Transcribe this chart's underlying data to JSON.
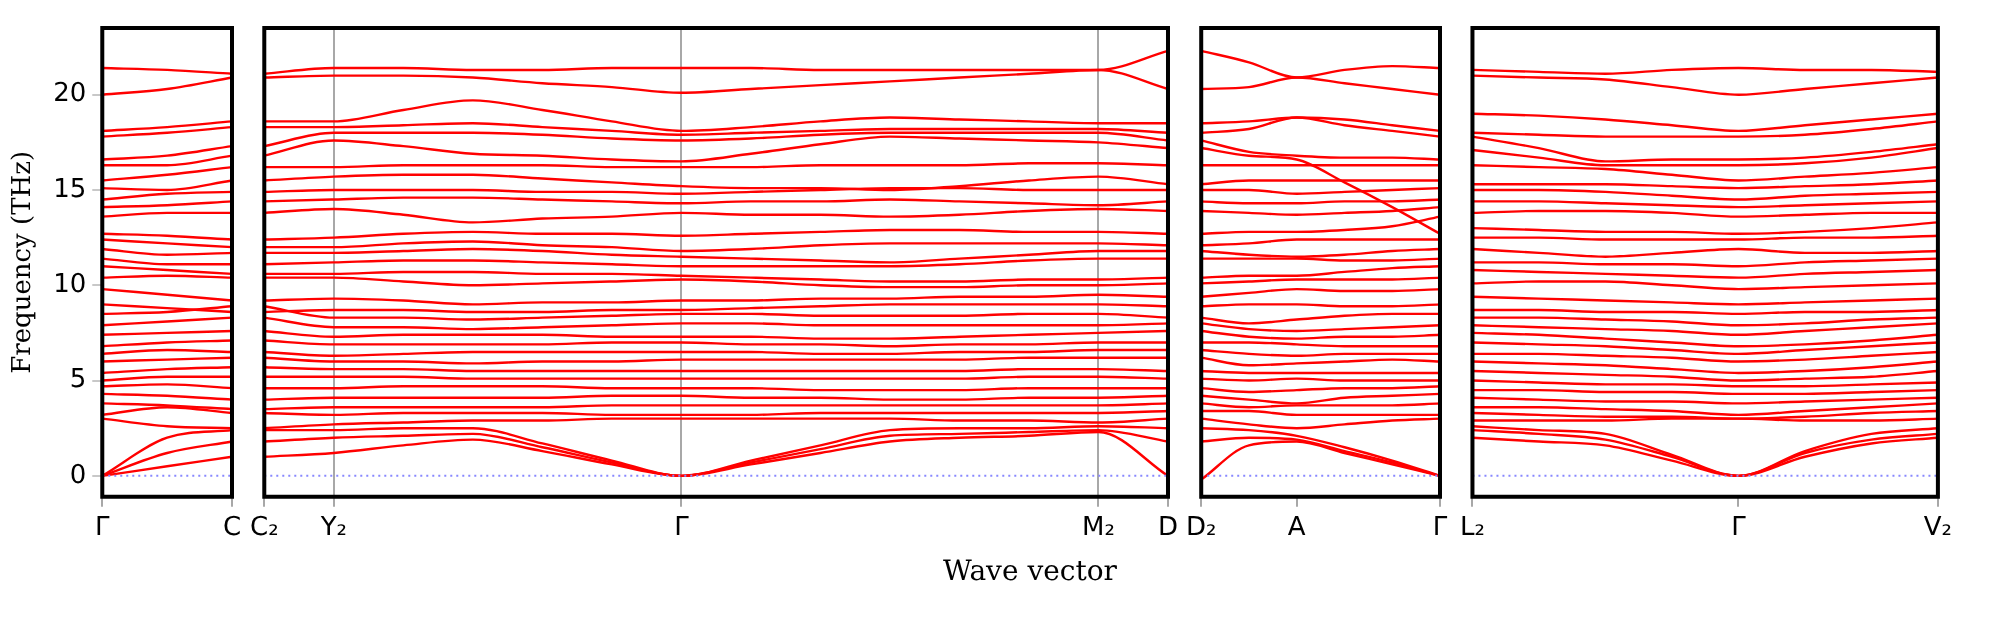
{
  "chart_data": [
    {
      "type": "line",
      "ylabel": "Frequency (THz)",
      "categories": [
        "Γ",
        null,
        "C"
      ],
      "ylim": [
        -1.1,
        23.5
      ],
      "yticks": [
        0,
        5,
        10,
        15,
        20
      ],
      "legend": false,
      "marker": "none",
      "line_style": "solid",
      "ref_lines": [
        {
          "axis": "y",
          "value": 0,
          "color": "#8888ff",
          "line_style": "dotted"
        }
      ],
      "series": [
        {
          "color": "#ff0000",
          "values": [
            21.4,
            21.3,
            21.1
          ]
        },
        {
          "color": "#ff0000",
          "values": [
            20.0,
            20.3,
            20.9
          ]
        },
        {
          "color": "#ff0000",
          "values": [
            18.1,
            18.3,
            18.6
          ]
        },
        {
          "color": "#ff0000",
          "values": [
            17.8,
            18.0,
            18.3
          ]
        },
        {
          "color": "#ff0000",
          "values": [
            16.6,
            16.8,
            17.3
          ]
        },
        {
          "color": "#ff0000",
          "values": [
            16.3,
            16.3,
            16.8
          ]
        },
        {
          "color": "#ff0000",
          "values": [
            15.5,
            15.8,
            16.2
          ]
        },
        {
          "color": "#ff0000",
          "values": [
            15.1,
            15.0,
            15.5
          ]
        },
        {
          "color": "#ff0000",
          "values": [
            14.5,
            14.8,
            14.9
          ]
        },
        {
          "color": "#ff0000",
          "values": [
            14.1,
            14.2,
            14.4
          ]
        },
        {
          "color": "#ff0000",
          "values": [
            13.6,
            13.8,
            13.8
          ]
        },
        {
          "color": "#ff0000",
          "values": [
            12.7,
            12.6,
            12.4
          ]
        },
        {
          "color": "#ff0000",
          "values": [
            12.4,
            12.2,
            12.0
          ]
        },
        {
          "color": "#ff0000",
          "values": [
            11.9,
            11.6,
            11.7
          ]
        },
        {
          "color": "#ff0000",
          "values": [
            11.4,
            11.1,
            11.1
          ]
        },
        {
          "color": "#ff0000",
          "values": [
            11.0,
            10.8,
            10.6
          ]
        },
        {
          "color": "#ff0000",
          "values": [
            10.4,
            10.5,
            10.4
          ]
        },
        {
          "color": "#ff0000",
          "values": [
            9.8,
            9.5,
            9.2
          ]
        },
        {
          "color": "#ff0000",
          "values": [
            9.0,
            8.8,
            8.6
          ]
        },
        {
          "color": "#ff0000",
          "values": [
            8.5,
            8.6,
            8.9
          ]
        },
        {
          "color": "#ff0000",
          "values": [
            7.9,
            8.1,
            8.3
          ]
        },
        {
          "color": "#ff0000",
          "values": [
            7.4,
            7.5,
            7.6
          ]
        },
        {
          "color": "#ff0000",
          "values": [
            6.8,
            7.0,
            7.1
          ]
        },
        {
          "color": "#ff0000",
          "values": [
            6.4,
            6.6,
            6.5
          ]
        },
        {
          "color": "#ff0000",
          "values": [
            6.0,
            6.1,
            6.2
          ]
        },
        {
          "color": "#ff0000",
          "values": [
            5.4,
            5.6,
            5.7
          ]
        },
        {
          "color": "#ff0000",
          "values": [
            5.0,
            5.2,
            5.2
          ]
        },
        {
          "color": "#ff0000",
          "values": [
            4.7,
            4.8,
            4.6
          ]
        },
        {
          "color": "#ff0000",
          "values": [
            4.3,
            4.2,
            4.0
          ]
        },
        {
          "color": "#ff0000",
          "values": [
            3.8,
            3.7,
            3.5
          ]
        },
        {
          "color": "#ff0000",
          "values": [
            3.2,
            3.6,
            3.3
          ]
        },
        {
          "color": "#ff0000",
          "values": [
            3.0,
            2.6,
            2.5
          ]
        },
        {
          "color": "#ff0000",
          "values": [
            0,
            2.0,
            2.4
          ]
        },
        {
          "color": "#ff0000",
          "values": [
            0,
            1.2,
            1.8
          ]
        },
        {
          "color": "#ff0000",
          "values": [
            0,
            0.5,
            1.0
          ]
        }
      ]
    },
    {
      "type": "line",
      "xlabel": "Wave vector",
      "categories": [
        "C₂",
        "Y₂",
        null,
        null,
        null,
        null,
        "Γ",
        null,
        null,
        null,
        null,
        null,
        "M₂",
        "D"
      ],
      "ylim": [
        -1.1,
        23.5
      ],
      "tick_labels": "x",
      "grid": "x",
      "legend": false,
      "marker": "none",
      "line_style": "solid",
      "ref_lines": [
        {
          "axis": "y",
          "value": 0,
          "color": "#8888ff",
          "line_style": "dotted"
        }
      ],
      "series": [
        {
          "color": "#ff0000",
          "values": [
            21.1,
            21.4,
            21.4,
            21.3,
            21.3,
            21.4,
            21.4,
            21.4,
            21.3,
            21.3,
            21.3,
            21.3,
            21.3,
            22.3
          ]
        },
        {
          "color": "#ff0000",
          "values": [
            20.9,
            21.0,
            21.0,
            20.9,
            20.6,
            20.4,
            20.1,
            20.3,
            20.5,
            20.7,
            20.9,
            21.1,
            21.3,
            20.3
          ]
        },
        {
          "color": "#ff0000",
          "values": [
            18.6,
            18.6,
            19.2,
            19.7,
            19.2,
            18.6,
            18.1,
            18.3,
            18.6,
            18.8,
            18.7,
            18.6,
            18.5,
            18.5
          ]
        },
        {
          "color": "#ff0000",
          "values": [
            18.3,
            18.3,
            18.4,
            18.5,
            18.3,
            18.1,
            17.9,
            18.0,
            18.1,
            18.2,
            18.2,
            18.2,
            18.2,
            18.0
          ]
        },
        {
          "color": "#ff0000",
          "values": [
            17.3,
            18.0,
            18.0,
            18.0,
            17.9,
            17.7,
            17.6,
            17.7,
            17.9,
            18.0,
            18.0,
            18.0,
            18.0,
            17.6
          ]
        },
        {
          "color": "#ff0000",
          "values": [
            16.8,
            17.6,
            17.3,
            16.9,
            16.8,
            16.6,
            16.5,
            16.9,
            17.4,
            17.8,
            17.7,
            17.6,
            17.5,
            17.2
          ]
        },
        {
          "color": "#ff0000",
          "values": [
            16.2,
            16.2,
            16.3,
            16.3,
            16.3,
            16.2,
            16.2,
            16.2,
            16.3,
            16.3,
            16.3,
            16.4,
            16.4,
            16.3
          ]
        },
        {
          "color": "#ff0000",
          "values": [
            15.5,
            15.7,
            15.8,
            15.8,
            15.6,
            15.4,
            15.2,
            15.1,
            15.1,
            15.0,
            15.2,
            15.5,
            15.7,
            15.3
          ]
        },
        {
          "color": "#ff0000",
          "values": [
            14.9,
            15.0,
            15.0,
            15.0,
            14.9,
            14.9,
            14.8,
            14.9,
            15.0,
            15.1,
            15.1,
            15.0,
            15.0,
            15.0
          ]
        },
        {
          "color": "#ff0000",
          "values": [
            14.4,
            14.5,
            14.6,
            14.6,
            14.5,
            14.4,
            14.3,
            14.4,
            14.4,
            14.5,
            14.4,
            14.3,
            14.2,
            14.4
          ]
        },
        {
          "color": "#ff0000",
          "values": [
            13.8,
            14.0,
            13.7,
            13.3,
            13.5,
            13.6,
            13.8,
            13.7,
            13.7,
            13.6,
            13.7,
            13.9,
            14.0,
            13.9
          ]
        },
        {
          "color": "#ff0000",
          "values": [
            12.4,
            12.5,
            12.7,
            12.8,
            12.7,
            12.7,
            12.6,
            12.7,
            12.8,
            12.9,
            12.9,
            12.8,
            12.8,
            12.7
          ]
        },
        {
          "color": "#ff0000",
          "values": [
            12.0,
            12.0,
            12.2,
            12.3,
            12.1,
            12.0,
            11.8,
            11.9,
            12.1,
            12.2,
            12.2,
            12.2,
            12.2,
            12.1
          ]
        },
        {
          "color": "#ff0000",
          "values": [
            11.7,
            11.7,
            11.8,
            11.9,
            11.8,
            11.6,
            11.5,
            11.4,
            11.3,
            11.2,
            11.4,
            11.6,
            11.8,
            11.8
          ]
        },
        {
          "color": "#ff0000",
          "values": [
            11.1,
            11.2,
            11.3,
            11.3,
            11.2,
            11.1,
            11.0,
            11.0,
            11.0,
            11.0,
            11.1,
            11.3,
            11.4,
            11.4
          ]
        },
        {
          "color": "#ff0000",
          "values": [
            10.6,
            10.6,
            10.7,
            10.7,
            10.6,
            10.6,
            10.5,
            10.4,
            10.3,
            10.2,
            10.2,
            10.3,
            10.3,
            10.4
          ]
        },
        {
          "color": "#ff0000",
          "values": [
            10.4,
            10.4,
            10.2,
            10.0,
            10.1,
            10.2,
            10.3,
            10.2,
            10.0,
            9.9,
            9.9,
            10.0,
            10.0,
            10.1
          ]
        },
        {
          "color": "#ff0000",
          "values": [
            9.2,
            9.3,
            9.2,
            9.0,
            9.1,
            9.1,
            9.2,
            9.2,
            9.3,
            9.3,
            9.4,
            9.4,
            9.5,
            9.4
          ]
        },
        {
          "color": "#ff0000",
          "values": [
            8.6,
            8.7,
            8.7,
            8.6,
            8.6,
            8.7,
            8.7,
            8.8,
            8.9,
            9.0,
            9.0,
            9.0,
            9.0,
            8.9
          ]
        },
        {
          "color": "#ff0000",
          "values": [
            8.9,
            8.3,
            8.3,
            8.2,
            8.3,
            8.4,
            8.5,
            8.5,
            8.4,
            8.4,
            8.4,
            8.5,
            8.5,
            8.3
          ]
        },
        {
          "color": "#ff0000",
          "values": [
            8.3,
            7.8,
            7.8,
            7.7,
            7.8,
            7.9,
            8.0,
            8.0,
            7.9,
            7.9,
            7.9,
            7.9,
            7.9,
            8.0
          ]
        },
        {
          "color": "#ff0000",
          "values": [
            7.6,
            7.3,
            7.4,
            7.4,
            7.4,
            7.3,
            7.3,
            7.3,
            7.2,
            7.2,
            7.3,
            7.4,
            7.5,
            7.6
          ]
        },
        {
          "color": "#ff0000",
          "values": [
            7.1,
            6.9,
            6.9,
            6.9,
            6.9,
            7.0,
            7.0,
            6.9,
            6.9,
            6.8,
            6.9,
            6.9,
            7.0,
            7.0
          ]
        },
        {
          "color": "#ff0000",
          "values": [
            6.5,
            6.3,
            6.4,
            6.5,
            6.5,
            6.5,
            6.5,
            6.5,
            6.4,
            6.4,
            6.5,
            6.5,
            6.6,
            6.6
          ]
        },
        {
          "color": "#ff0000",
          "values": [
            6.2,
            6.0,
            6.0,
            5.9,
            6.0,
            6.0,
            6.1,
            6.1,
            6.1,
            6.1,
            6.1,
            6.2,
            6.2,
            6.2
          ]
        },
        {
          "color": "#ff0000",
          "values": [
            5.7,
            5.6,
            5.6,
            5.5,
            5.5,
            5.5,
            5.5,
            5.5,
            5.5,
            5.5,
            5.5,
            5.6,
            5.6,
            5.5
          ]
        },
        {
          "color": "#ff0000",
          "values": [
            5.2,
            5.2,
            5.2,
            5.1,
            5.1,
            5.1,
            5.1,
            5.1,
            5.1,
            5.1,
            5.1,
            5.2,
            5.2,
            5.1
          ]
        },
        {
          "color": "#ff0000",
          "values": [
            4.6,
            4.6,
            4.7,
            4.7,
            4.7,
            4.6,
            4.6,
            4.6,
            4.5,
            4.5,
            4.5,
            4.6,
            4.6,
            4.6
          ]
        },
        {
          "color": "#ff0000",
          "values": [
            4.0,
            4.1,
            4.1,
            4.1,
            4.1,
            4.2,
            4.2,
            4.1,
            4.1,
            4.0,
            4.0,
            4.1,
            4.1,
            4.2
          ]
        },
        {
          "color": "#ff0000",
          "values": [
            3.5,
            3.6,
            3.6,
            3.6,
            3.6,
            3.7,
            3.7,
            3.7,
            3.7,
            3.7,
            3.7,
            3.7,
            3.7,
            3.8
          ]
        },
        {
          "color": "#ff0000",
          "values": [
            3.3,
            3.2,
            3.3,
            3.3,
            3.3,
            3.2,
            3.2,
            3.2,
            3.3,
            3.3,
            3.3,
            3.3,
            3.3,
            3.4
          ]
        },
        {
          "color": "#ff0000",
          "values": [
            2.5,
            2.7,
            2.8,
            2.9,
            2.9,
            3.0,
            3.0,
            3.0,
            3.0,
            3.0,
            2.9,
            2.9,
            2.8,
            3.0
          ]
        },
        {
          "color": "#ff0000",
          "values": [
            2.4,
            2.4,
            2.5,
            2.5,
            1.7,
            0.8,
            0,
            0.8,
            1.6,
            2.4,
            2.5,
            2.5,
            2.6,
            2.5
          ]
        },
        {
          "color": "#ff0000",
          "values": [
            1.8,
            2.0,
            2.1,
            2.2,
            1.5,
            0.7,
            0,
            0.7,
            1.4,
            2.1,
            2.2,
            2.3,
            2.4,
            1.8
          ]
        },
        {
          "color": "#ff0000",
          "values": [
            1.0,
            1.2,
            1.6,
            1.9,
            1.3,
            0.6,
            0,
            0.6,
            1.2,
            1.8,
            2.0,
            2.1,
            2.3,
            0
          ]
        }
      ]
    },
    {
      "type": "line",
      "categories": [
        "D₂",
        null,
        "A",
        null,
        null,
        "Γ"
      ],
      "ylim": [
        -1.1,
        23.5
      ],
      "tick_labels": "x",
      "legend": false,
      "marker": "none",
      "line_style": "solid",
      "ref_lines": [
        {
          "axis": "y",
          "value": 0,
          "color": "#8888ff",
          "line_style": "dotted"
        }
      ],
      "series": [
        {
          "color": "#ff0000",
          "values": [
            22.3,
            21.7,
            20.9,
            21.3,
            21.5,
            21.4
          ]
        },
        {
          "color": "#ff0000",
          "values": [
            20.3,
            20.4,
            20.9,
            20.6,
            20.3,
            20.0
          ]
        },
        {
          "color": "#ff0000",
          "values": [
            18.5,
            18.6,
            18.8,
            18.7,
            18.4,
            18.1
          ]
        },
        {
          "color": "#ff0000",
          "values": [
            18.0,
            18.2,
            18.8,
            18.4,
            18.1,
            17.8
          ]
        },
        {
          "color": "#ff0000",
          "values": [
            17.6,
            17.0,
            16.8,
            16.7,
            16.7,
            16.6
          ]
        },
        {
          "color": "#ff0000",
          "values": [
            17.2,
            16.8,
            16.6,
            15.4,
            14.1,
            12.7
          ]
        },
        {
          "color": "#ff0000",
          "values": [
            16.3,
            16.3,
            16.3,
            16.3,
            16.3,
            16.3
          ]
        },
        {
          "color": "#ff0000",
          "values": [
            15.3,
            15.5,
            15.5,
            15.5,
            15.5,
            15.5
          ]
        },
        {
          "color": "#ff0000",
          "values": [
            15.0,
            15.0,
            14.8,
            14.9,
            15.0,
            15.1
          ]
        },
        {
          "color": "#ff0000",
          "values": [
            14.4,
            14.3,
            14.3,
            14.4,
            14.4,
            14.5
          ]
        },
        {
          "color": "#ff0000",
          "values": [
            13.9,
            13.8,
            13.7,
            13.8,
            13.9,
            14.1
          ]
        },
        {
          "color": "#ff0000",
          "values": [
            12.7,
            12.8,
            12.8,
            12.9,
            13.1,
            13.6
          ]
        },
        {
          "color": "#ff0000",
          "values": [
            12.1,
            12.2,
            12.4,
            12.4,
            12.4,
            12.4
          ]
        },
        {
          "color": "#ff0000",
          "values": [
            11.8,
            11.6,
            11.5,
            11.6,
            11.8,
            11.9
          ]
        },
        {
          "color": "#ff0000",
          "values": [
            11.4,
            11.4,
            11.4,
            11.3,
            11.3,
            11.4
          ]
        },
        {
          "color": "#ff0000",
          "values": [
            10.4,
            10.5,
            10.5,
            10.7,
            10.9,
            11.0
          ]
        },
        {
          "color": "#ff0000",
          "values": [
            10.1,
            10.2,
            10.3,
            10.3,
            10.3,
            10.4
          ]
        },
        {
          "color": "#ff0000",
          "values": [
            9.4,
            9.6,
            9.8,
            9.7,
            9.7,
            9.8
          ]
        },
        {
          "color": "#ff0000",
          "values": [
            8.9,
            9.0,
            9.0,
            8.9,
            8.9,
            9.0
          ]
        },
        {
          "color": "#ff0000",
          "values": [
            8.3,
            8.0,
            8.2,
            8.4,
            8.5,
            8.5
          ]
        },
        {
          "color": "#ff0000",
          "values": [
            8.0,
            7.7,
            7.6,
            7.7,
            7.8,
            7.9
          ]
        },
        {
          "color": "#ff0000",
          "values": [
            7.6,
            7.3,
            7.2,
            7.3,
            7.3,
            7.4
          ]
        },
        {
          "color": "#ff0000",
          "values": [
            7.0,
            7.0,
            6.9,
            6.8,
            6.8,
            6.8
          ]
        },
        {
          "color": "#ff0000",
          "values": [
            6.6,
            6.4,
            6.3,
            6.4,
            6.4,
            6.4
          ]
        },
        {
          "color": "#ff0000",
          "values": [
            6.2,
            5.8,
            5.9,
            6.0,
            6.1,
            6.0
          ]
        },
        {
          "color": "#ff0000",
          "values": [
            5.5,
            5.4,
            5.4,
            5.4,
            5.4,
            5.4
          ]
        },
        {
          "color": "#ff0000",
          "values": [
            5.1,
            5.0,
            5.1,
            5.0,
            5.0,
            5.0
          ]
        },
        {
          "color": "#ff0000",
          "values": [
            4.6,
            4.4,
            4.5,
            4.6,
            4.6,
            4.7
          ]
        },
        {
          "color": "#ff0000",
          "values": [
            4.2,
            4.0,
            3.8,
            4.1,
            4.2,
            4.3
          ]
        },
        {
          "color": "#ff0000",
          "values": [
            3.8,
            3.6,
            3.7,
            3.7,
            3.7,
            3.8
          ]
        },
        {
          "color": "#ff0000",
          "values": [
            3.4,
            3.4,
            3.2,
            3.2,
            3.2,
            3.2
          ]
        },
        {
          "color": "#ff0000",
          "values": [
            3.0,
            2.7,
            2.5,
            2.7,
            2.9,
            3.0
          ]
        },
        {
          "color": "#ff0000",
          "values": [
            2.5,
            2.4,
            2.1,
            1.5,
            0.8,
            0
          ]
        },
        {
          "color": "#ff0000",
          "values": [
            1.8,
            2.0,
            1.9,
            1.3,
            0.7,
            0
          ]
        },
        {
          "color": "#ff0000",
          "values": [
            -0.2,
            1.6,
            1.8,
            1.2,
            0.6,
            0
          ]
        }
      ]
    },
    {
      "type": "line",
      "categories": [
        "L₂",
        null,
        null,
        null,
        "Γ",
        null,
        null,
        "V₂"
      ],
      "ylim": [
        -1.1,
        23.5
      ],
      "tick_labels": "x",
      "legend": false,
      "marker": "none",
      "line_style": "solid",
      "ref_lines": [
        {
          "axis": "y",
          "value": 0,
          "color": "#8888ff",
          "line_style": "dotted"
        }
      ],
      "series": [
        {
          "color": "#ff0000",
          "values": [
            21.3,
            21.2,
            21.1,
            21.3,
            21.4,
            21.3,
            21.3,
            21.2
          ]
        },
        {
          "color": "#ff0000",
          "values": [
            21.0,
            20.9,
            20.8,
            20.4,
            20.0,
            20.3,
            20.6,
            20.9
          ]
        },
        {
          "color": "#ff0000",
          "values": [
            19.0,
            18.9,
            18.7,
            18.4,
            18.1,
            18.4,
            18.7,
            19.0
          ]
        },
        {
          "color": "#ff0000",
          "values": [
            18.0,
            17.9,
            17.8,
            17.8,
            17.8,
            17.9,
            18.2,
            18.6
          ]
        },
        {
          "color": "#ff0000",
          "values": [
            17.8,
            17.2,
            16.5,
            16.6,
            16.6,
            16.7,
            17.0,
            17.4
          ]
        },
        {
          "color": "#ff0000",
          "values": [
            17.1,
            16.7,
            16.3,
            16.3,
            16.3,
            16.4,
            16.7,
            17.2
          ]
        },
        {
          "color": "#ff0000",
          "values": [
            16.3,
            16.2,
            16.1,
            15.8,
            15.5,
            15.7,
            15.9,
            16.2
          ]
        },
        {
          "color": "#ff0000",
          "values": [
            15.3,
            15.3,
            15.3,
            15.2,
            15.1,
            15.2,
            15.3,
            15.5
          ]
        },
        {
          "color": "#ff0000",
          "values": [
            15.0,
            15.0,
            14.9,
            14.7,
            14.5,
            14.7,
            14.8,
            14.9
          ]
        },
        {
          "color": "#ff0000",
          "values": [
            14.4,
            14.4,
            14.3,
            14.2,
            14.1,
            14.2,
            14.3,
            14.4
          ]
        },
        {
          "color": "#ff0000",
          "values": [
            13.8,
            13.9,
            13.9,
            13.8,
            13.6,
            13.7,
            13.8,
            13.8
          ]
        },
        {
          "color": "#ff0000",
          "values": [
            13.0,
            12.9,
            12.8,
            12.8,
            12.7,
            12.8,
            13.0,
            13.3
          ]
        },
        {
          "color": "#ff0000",
          "values": [
            12.5,
            12.5,
            12.4,
            12.4,
            12.4,
            12.5,
            12.5,
            12.6
          ]
        },
        {
          "color": "#ff0000",
          "values": [
            11.9,
            11.7,
            11.5,
            11.7,
            11.9,
            11.7,
            11.7,
            11.8
          ]
        },
        {
          "color": "#ff0000",
          "values": [
            11.2,
            11.2,
            11.1,
            11.1,
            11.0,
            11.2,
            11.3,
            11.4
          ]
        },
        {
          "color": "#ff0000",
          "values": [
            10.8,
            10.7,
            10.6,
            10.5,
            10.4,
            10.6,
            10.7,
            10.8
          ]
        },
        {
          "color": "#ff0000",
          "values": [
            10.1,
            10.2,
            10.2,
            10.0,
            9.8,
            9.9,
            10.0,
            10.1
          ]
        },
        {
          "color": "#ff0000",
          "values": [
            9.4,
            9.3,
            9.2,
            9.1,
            9.0,
            9.1,
            9.2,
            9.3
          ]
        },
        {
          "color": "#ff0000",
          "values": [
            8.7,
            8.7,
            8.6,
            8.6,
            8.5,
            8.6,
            8.6,
            8.7
          ]
        },
        {
          "color": "#ff0000",
          "values": [
            8.3,
            8.3,
            8.2,
            8.1,
            7.9,
            8.0,
            8.2,
            8.3
          ]
        },
        {
          "color": "#ff0000",
          "values": [
            7.9,
            7.8,
            7.7,
            7.6,
            7.4,
            7.6,
            7.8,
            8.0
          ]
        },
        {
          "color": "#ff0000",
          "values": [
            7.5,
            7.4,
            7.2,
            7.0,
            6.8,
            6.9,
            7.1,
            7.4
          ]
        },
        {
          "color": "#ff0000",
          "values": [
            7.0,
            6.9,
            6.8,
            6.6,
            6.4,
            6.6,
            6.8,
            7.0
          ]
        },
        {
          "color": "#ff0000",
          "values": [
            6.4,
            6.4,
            6.3,
            6.2,
            6.0,
            6.1,
            6.3,
            6.5
          ]
        },
        {
          "color": "#ff0000",
          "values": [
            6.0,
            5.9,
            5.8,
            5.6,
            5.4,
            5.5,
            5.7,
            6.0
          ]
        },
        {
          "color": "#ff0000",
          "values": [
            5.5,
            5.4,
            5.3,
            5.2,
            5.0,
            5.1,
            5.2,
            5.5
          ]
        },
        {
          "color": "#ff0000",
          "values": [
            5.0,
            4.9,
            4.8,
            4.8,
            4.7,
            4.7,
            4.8,
            4.9
          ]
        },
        {
          "color": "#ff0000",
          "values": [
            4.5,
            4.5,
            4.4,
            4.4,
            4.3,
            4.3,
            4.4,
            4.5
          ]
        },
        {
          "color": "#ff0000",
          "values": [
            4.1,
            4.0,
            3.9,
            3.9,
            3.8,
            3.9,
            4.0,
            4.1
          ]
        },
        {
          "color": "#ff0000",
          "values": [
            3.6,
            3.6,
            3.5,
            3.4,
            3.2,
            3.4,
            3.6,
            3.8
          ]
        },
        {
          "color": "#ff0000",
          "values": [
            3.3,
            3.2,
            3.1,
            3.1,
            3.0,
            3.1,
            3.3,
            3.4
          ]
        },
        {
          "color": "#ff0000",
          "values": [
            2.9,
            2.9,
            2.9,
            3.0,
            3.0,
            2.9,
            2.9,
            3.0
          ]
        },
        {
          "color": "#ff0000",
          "values": [
            2.6,
            2.4,
            2.2,
            1.1,
            0,
            1.3,
            2.2,
            2.5
          ]
        },
        {
          "color": "#ff0000",
          "values": [
            2.4,
            2.2,
            1.9,
            1.0,
            0,
            1.2,
            1.9,
            2.2
          ]
        },
        {
          "color": "#ff0000",
          "values": [
            2.0,
            1.8,
            1.6,
            0.8,
            0,
            1.0,
            1.7,
            2.0
          ]
        }
      ]
    }
  ]
}
